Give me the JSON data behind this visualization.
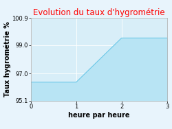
{
  "title": "Evolution du taux d'hygrométrie",
  "xlabel": "heure par heure",
  "ylabel": "Taux hygrométrie %",
  "x": [
    0,
    1,
    2,
    3
  ],
  "y": [
    96.4,
    96.4,
    99.5,
    99.5
  ],
  "xlim": [
    0,
    3
  ],
  "ylim": [
    95.1,
    100.9
  ],
  "yticks": [
    95.1,
    97.0,
    99.0,
    100.9
  ],
  "xticks": [
    0,
    1,
    2,
    3
  ],
  "title_color": "#ff0000",
  "line_color": "#6cc8e8",
  "fill_color": "#b8e4f4",
  "plot_bg_color": "#d8eef8",
  "fig_bg_color": "#e8f4fc",
  "title_fontsize": 8.5,
  "label_fontsize": 7,
  "tick_fontsize": 6,
  "grid_color": "#ffffff",
  "spine_color": "#aaaaaa"
}
